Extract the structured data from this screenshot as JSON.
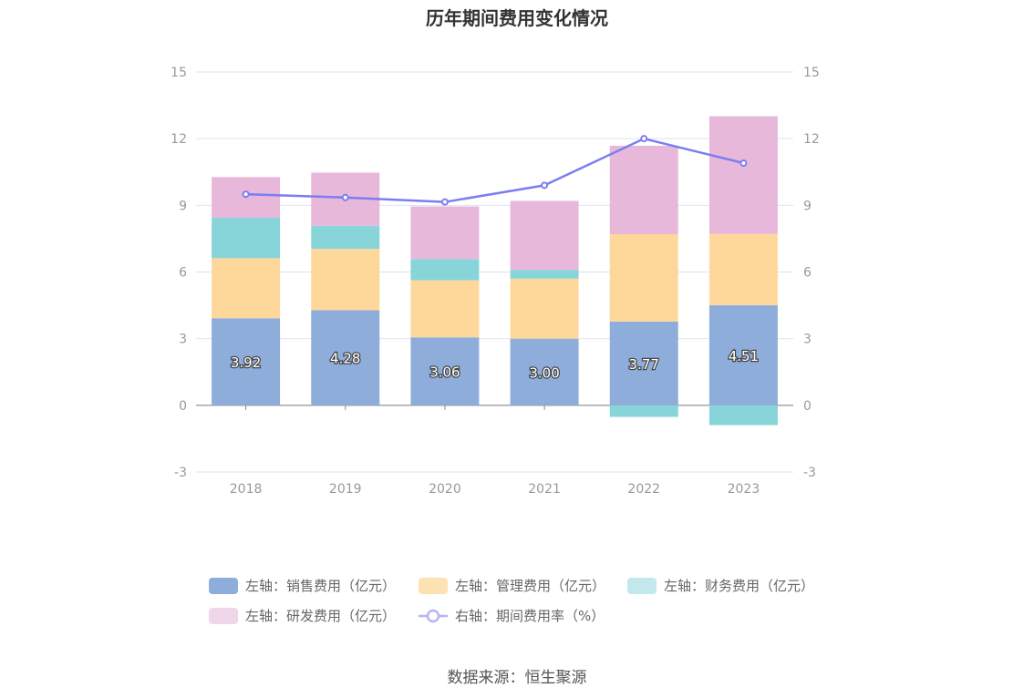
{
  "chart_data": {
    "type": "bar",
    "stacked": true,
    "title": "历年期间费用变化情况",
    "categories": [
      "2018",
      "2019",
      "2020",
      "2021",
      "2022",
      "2023"
    ],
    "ylim": [
      -3,
      15
    ],
    "yticks": [
      -3,
      0,
      3,
      6,
      9,
      12,
      15
    ],
    "y2lim": [
      -3,
      15
    ],
    "y2ticks": [
      -3,
      0,
      3,
      6,
      9,
      12,
      15
    ],
    "grid": true,
    "legend_position": "bottom",
    "series": [
      {
        "name": "左轴：销售费用（亿元）",
        "axis": "left",
        "type": "bar",
        "color": "#8eaddb",
        "values": [
          3.92,
          4.28,
          3.06,
          3.0,
          3.77,
          4.51
        ],
        "labels": [
          "3.92",
          "4.28",
          "3.06",
          "3.00",
          "3.77",
          "4.51"
        ]
      },
      {
        "name": "左轴：管理费用（亿元）",
        "axis": "left",
        "type": "bar",
        "color": "#fed89b",
        "values": [
          2.7,
          2.76,
          2.57,
          2.7,
          3.93,
          3.2
        ]
      },
      {
        "name": "左轴：财务费用（亿元）",
        "axis": "left",
        "type": "bar",
        "color": "#88d5d9",
        "values": [
          1.82,
          1.04,
          0.95,
          0.4,
          -0.52,
          -0.89
        ]
      },
      {
        "name": "左轴：研发费用（亿元）",
        "axis": "left",
        "type": "bar",
        "color": "#e8b8db",
        "values": [
          1.83,
          2.39,
          2.37,
          3.1,
          3.98,
          5.3
        ]
      },
      {
        "name": "右轴：期间费用率（%）",
        "axis": "right",
        "type": "line",
        "color": "#7b7ef0",
        "values": [
          9.5,
          9.35,
          9.15,
          9.9,
          12.0,
          10.9
        ]
      }
    ],
    "legend_colors": [
      "#8eaddb",
      "#fee2b3",
      "#c3e8ec",
      "#f0d6e9",
      "#b4b6f3"
    ]
  },
  "source": "数据来源：恒生聚源"
}
